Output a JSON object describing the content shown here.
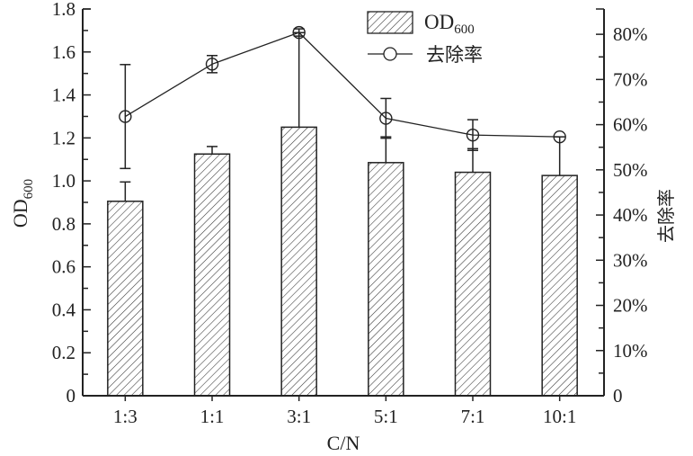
{
  "chart_data": {
    "type": "bar",
    "xlabel": "C/N",
    "ylabel_left": "OD",
    "ylabel_left_sub": "600",
    "ylabel_right": "去除率",
    "categories": [
      "1:3",
      "1:1",
      "3:1",
      "5:1",
      "7:1",
      "10:1"
    ],
    "ylim_left": [
      0,
      1.8
    ],
    "yticks_left": [
      "0",
      "0.2",
      "0.4",
      "0.6",
      "0.8",
      "1.0",
      "1.2",
      "1.4",
      "1.6",
      "1.8"
    ],
    "ylim_right_percent": [
      0,
      85.6
    ],
    "yticks_right": [
      "0",
      "10%",
      "20%",
      "30%",
      "40%",
      "50%",
      "60%",
      "70%",
      "80%"
    ],
    "grid": false,
    "legend_position": "top-right",
    "series": [
      {
        "name": "OD600",
        "legend_label": "OD",
        "legend_sub": "600",
        "type": "bar",
        "axis": "left",
        "fill": "hatched",
        "values": [
          0.905,
          1.125,
          1.25,
          1.085,
          1.04,
          1.025
        ],
        "errors": [
          0.09,
          0.035,
          0.44,
          0.12,
          0.11,
          0.18
        ]
      },
      {
        "name": "去除率",
        "type": "line",
        "axis": "right",
        "marker": "open-circle",
        "values": [
          61.8,
          73.4,
          80.4,
          61.4,
          57.7,
          57.3
        ],
        "errors": [
          11.5,
          1.9,
          0.8,
          4.4,
          3.4,
          0
        ]
      }
    ],
    "colors": {
      "line": "#222222",
      "background": "#ffffff"
    }
  }
}
